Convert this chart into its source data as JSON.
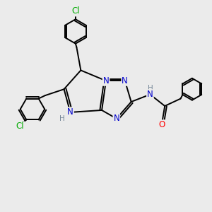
{
  "bg_color": "#ebebeb",
  "atom_colors": {
    "N": "#0000cc",
    "O": "#ff0000",
    "Cl": "#00aa00",
    "H": "#778899",
    "C": "#000000"
  },
  "line_width": 1.4,
  "font_size": 8.5,
  "figsize": [
    3.0,
    3.0
  ],
  "dpi": 100
}
